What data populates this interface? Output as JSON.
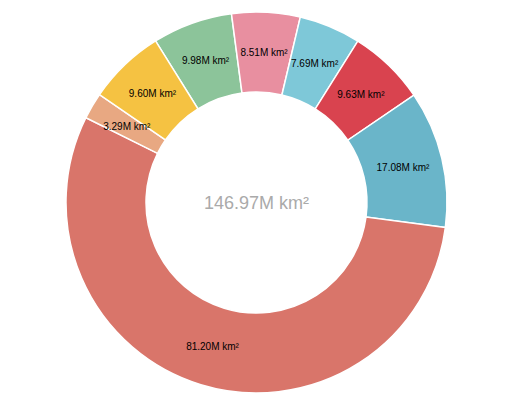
{
  "chart_data": {
    "type": "donut",
    "values": [
      9.98,
      8.51,
      7.69,
      9.63,
      17.08,
      81.2,
      3.29,
      9.6
    ],
    "value_labels": [
      "9.98M km²",
      "8.51M km²",
      "7.69M km²",
      "9.63M km²",
      "17.08M km²",
      "81.20M km²",
      "3.29M km²",
      "9.60M km²"
    ],
    "colors": [
      "#8cc49a",
      "#e88fa0",
      "#7ec8d8",
      "#d9434f",
      "#6ab5c9",
      "#d9756a",
      "#e8a882",
      "#f5c242"
    ],
    "annotations": [
      "146.97M km²"
    ],
    "data_labels": true
  }
}
